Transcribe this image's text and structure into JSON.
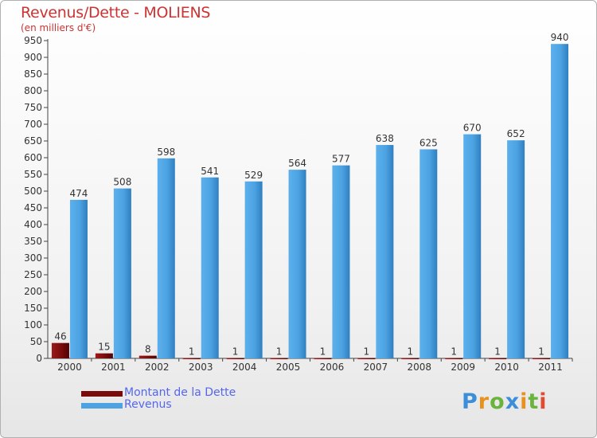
{
  "chart_data": {
    "type": "bar",
    "title": "Revenus/Dette - MOLIENS",
    "subtitle": "(en milliers d'€)",
    "categories": [
      "2000",
      "2001",
      "2002",
      "2003",
      "2004",
      "2005",
      "2006",
      "2007",
      "2008",
      "2009",
      "2010",
      "2011"
    ],
    "series": [
      {
        "name": "Montant de la Dette",
        "color": "#7a0b0b",
        "values": [
          46,
          15,
          8,
          1,
          1,
          1,
          1,
          1,
          1,
          1,
          1,
          1
        ]
      },
      {
        "name": "Revenus",
        "color": "#4da3e2",
        "values": [
          474,
          508,
          598,
          541,
          529,
          564,
          577,
          638,
          625,
          670,
          652,
          940
        ]
      }
    ],
    "ylim": [
      0,
      950
    ],
    "yticks": [
      0,
      50,
      100,
      150,
      200,
      250,
      300,
      350,
      400,
      450,
      500,
      550,
      600,
      650,
      700,
      750,
      800,
      850,
      900,
      950
    ],
    "grid": false,
    "legend": "bottom-left"
  },
  "logo": {
    "letters": [
      "P",
      "r",
      "o",
      "x",
      "i",
      "t",
      "i"
    ],
    "colors": [
      "#3d8ed8",
      "#e8911e",
      "#6ab43e",
      "#3d8ed8",
      "#e8911e",
      "#6ab43e",
      "#e04a2f"
    ]
  }
}
